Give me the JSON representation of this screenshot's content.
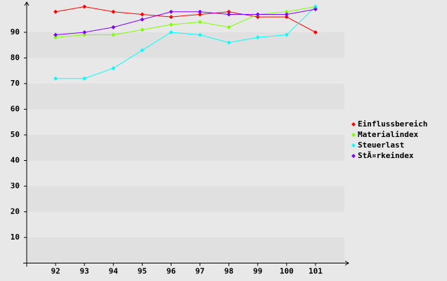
{
  "chart_data": {
    "type": "line",
    "x": [
      92,
      93,
      94,
      95,
      96,
      97,
      98,
      99,
      100,
      101
    ],
    "xlim": [
      91,
      102
    ],
    "xticks": [
      92,
      93,
      94,
      95,
      96,
      97,
      98,
      99,
      100,
      101
    ],
    "ylim": [
      0,
      100
    ],
    "yticks": [
      10,
      20,
      30,
      40,
      50,
      60,
      70,
      80,
      90
    ],
    "grid": true,
    "legend": "right",
    "series": [
      {
        "name": "Einflussbereich",
        "color": "#ff0000",
        "values": [
          98,
          100,
          98,
          97,
          96,
          97,
          98,
          96,
          96,
          90
        ]
      },
      {
        "name": "Materialindex",
        "color": "#80ff00",
        "values": [
          88,
          89,
          89,
          91,
          93,
          94,
          92,
          97,
          98,
          100
        ]
      },
      {
        "name": "Steuerlast",
        "color": "#00ffff",
        "values": [
          72,
          72,
          76,
          83,
          90,
          89,
          86,
          88,
          89,
          100
        ]
      },
      {
        "name": "StÃ¤rkeindex",
        "color": "#8000ff",
        "values": [
          89,
          90,
          92,
          95,
          98,
          98,
          97,
          97,
          97,
          99
        ]
      }
    ]
  }
}
